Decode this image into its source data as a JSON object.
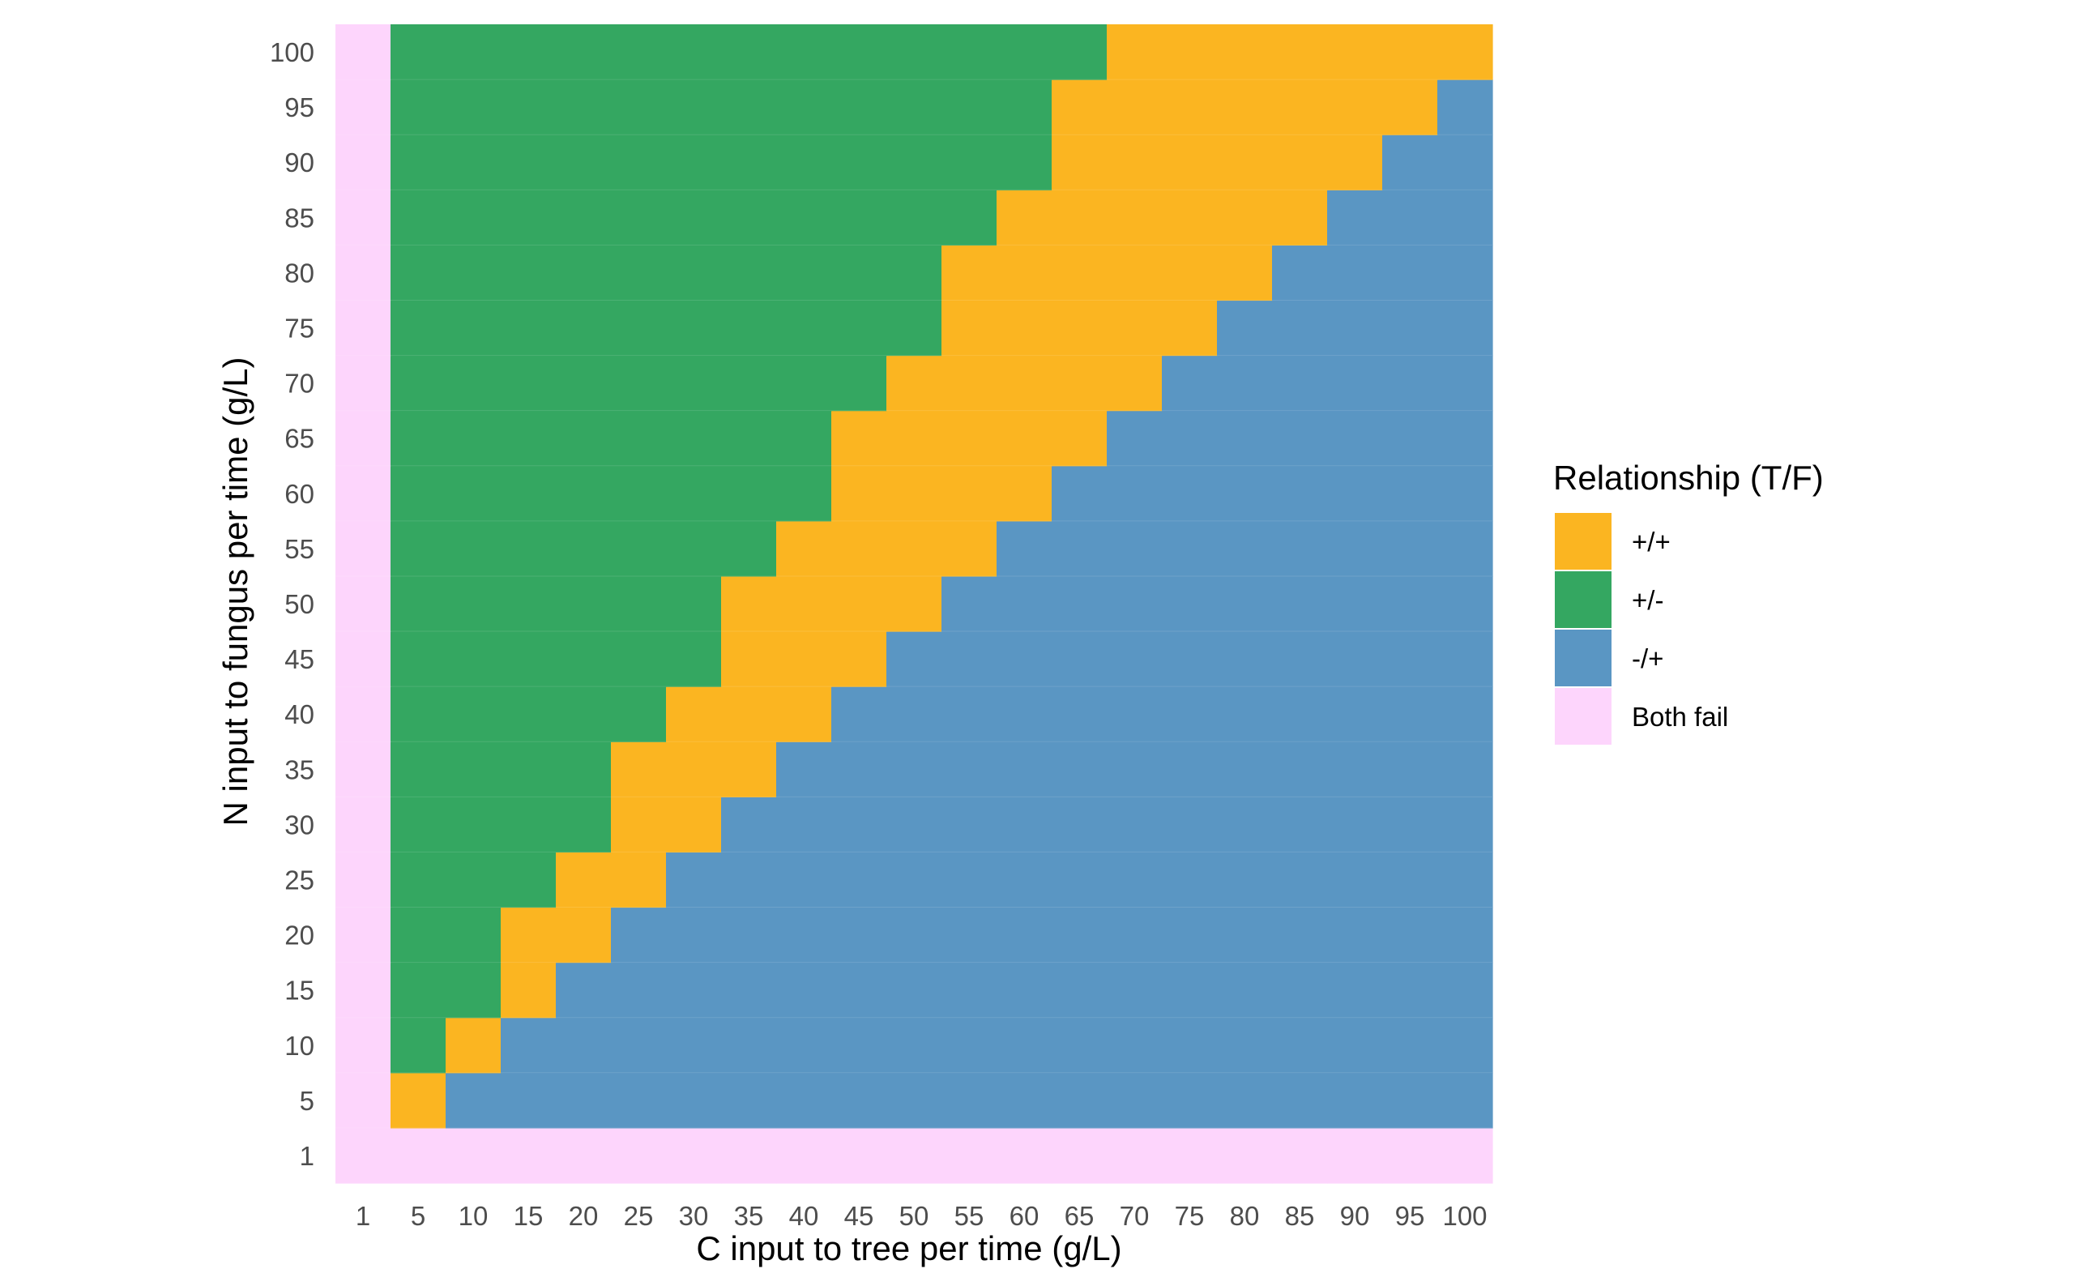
{
  "chart_data": {
    "type": "heatmap",
    "title": "",
    "xlabel": "C input to tree per time (g/L)",
    "ylabel": "N input to fungus per time (g/L)",
    "x": [
      "1",
      "5",
      "10",
      "15",
      "20",
      "25",
      "30",
      "35",
      "40",
      "45",
      "50",
      "55",
      "60",
      "65",
      "70",
      "75",
      "80",
      "85",
      "90",
      "95",
      "100"
    ],
    "y": [
      "1",
      "5",
      "10",
      "15",
      "20",
      "25",
      "30",
      "35",
      "40",
      "45",
      "50",
      "55",
      "60",
      "65",
      "70",
      "75",
      "80",
      "85",
      "90",
      "95",
      "100"
    ],
    "grid": false,
    "cell_encoding": "For each N row (listed bottom to top), the C columns (left to right) are: column C=1 is 'Both fail'; columns C=5 up to the last green column are '+/-'; then '+/+' up to the last orange column; remaining columns are '-/+'. Row N=1 is entirely 'Both fail'.",
    "rows": [
      {
        "n": "1",
        "all": "Both fail"
      },
      {
        "n": "5",
        "last_green_c": null,
        "last_orange_c": "5"
      },
      {
        "n": "10",
        "last_green_c": "5",
        "last_orange_c": "10"
      },
      {
        "n": "15",
        "last_green_c": "10",
        "last_orange_c": "15"
      },
      {
        "n": "20",
        "last_green_c": "10",
        "last_orange_c": "20"
      },
      {
        "n": "25",
        "last_green_c": "15",
        "last_orange_c": "25"
      },
      {
        "n": "30",
        "last_green_c": "20",
        "last_orange_c": "30"
      },
      {
        "n": "35",
        "last_green_c": "20",
        "last_orange_c": "35"
      },
      {
        "n": "40",
        "last_green_c": "25",
        "last_orange_c": "40"
      },
      {
        "n": "45",
        "last_green_c": "30",
        "last_orange_c": "45"
      },
      {
        "n": "50",
        "last_green_c": "30",
        "last_orange_c": "50"
      },
      {
        "n": "55",
        "last_green_c": "35",
        "last_orange_c": "55"
      },
      {
        "n": "60",
        "last_green_c": "40",
        "last_orange_c": "60"
      },
      {
        "n": "65",
        "last_green_c": "40",
        "last_orange_c": "65"
      },
      {
        "n": "70",
        "last_green_c": "45",
        "last_orange_c": "70"
      },
      {
        "n": "75",
        "last_green_c": "50",
        "last_orange_c": "75"
      },
      {
        "n": "80",
        "last_green_c": "50",
        "last_orange_c": "80"
      },
      {
        "n": "85",
        "last_green_c": "55",
        "last_orange_c": "85"
      },
      {
        "n": "90",
        "last_green_c": "60",
        "last_orange_c": "90"
      },
      {
        "n": "95",
        "last_green_c": "60",
        "last_orange_c": "95"
      },
      {
        "n": "100",
        "last_green_c": "65",
        "last_orange_c": "100"
      }
    ],
    "legend": {
      "title": "Relationship (T/F)",
      "placement": "right",
      "entries": [
        {
          "label": "+/+",
          "color": "#FBB521"
        },
        {
          "label": "+/-",
          "color": "#34A761"
        },
        {
          "label": "-/+",
          "color": "#5A96C3"
        },
        {
          "label": "Both fail",
          "color": "#FDD5FC"
        }
      ]
    }
  }
}
